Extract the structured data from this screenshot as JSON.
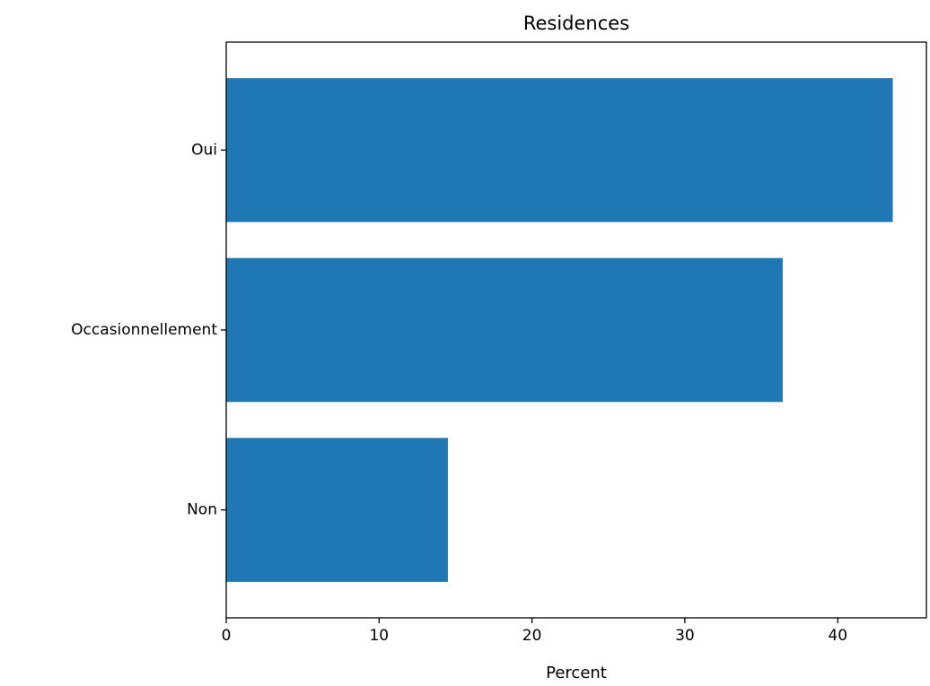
{
  "chart_data": {
    "type": "bar",
    "orientation": "horizontal",
    "title": "Residences",
    "xlabel": "Percent",
    "ylabel": "",
    "categories": [
      "Oui",
      "Occasionnellement",
      "Non"
    ],
    "values": [
      43.6,
      36.4,
      14.5
    ],
    "xlim": [
      0,
      45.8
    ],
    "xticks": [
      0,
      10,
      20,
      30,
      40
    ],
    "grid": false,
    "colors": {
      "bar": "#1f77b4",
      "axis": "#000000",
      "background": "#ffffff"
    }
  }
}
